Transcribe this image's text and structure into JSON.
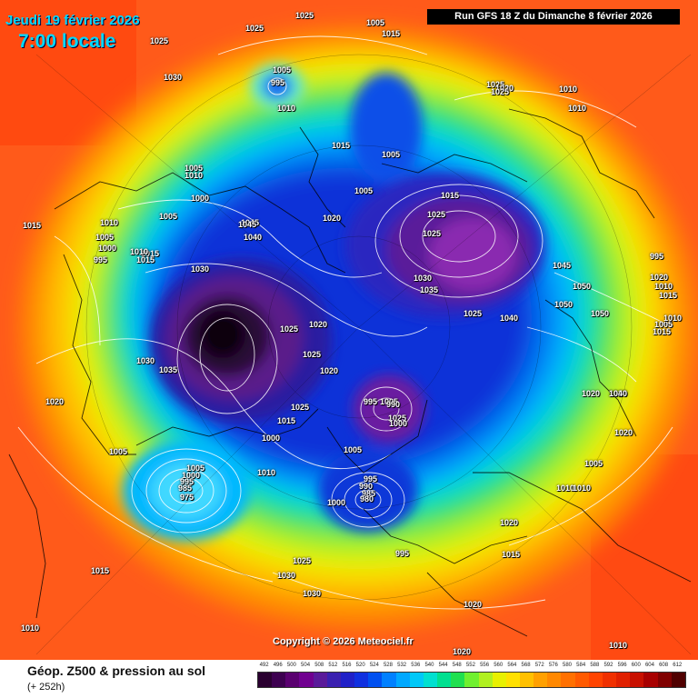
{
  "header": {
    "date_label": "Jeudi 19 février 2026",
    "time_label": "7:00 locale",
    "run_label": "Run GFS 18 Z du Dimanche 8 février 2026"
  },
  "copyright": "Copyright © 2026 Meteociel.fr",
  "legend": {
    "title": "Géop. Z500 & pression au sol",
    "subtitle": "(+ 252h)",
    "scale_values": [
      "492",
      "496",
      "500",
      "504",
      "508",
      "512",
      "516",
      "520",
      "524",
      "528",
      "532",
      "536",
      "540",
      "544",
      "548",
      "552",
      "556",
      "560",
      "564",
      "568",
      "572",
      "576",
      "580",
      "584",
      "588",
      "592",
      "596",
      "600",
      "604",
      "608",
      "612"
    ],
    "scale_colors": [
      "#2a0030",
      "#3d0050",
      "#5a0070",
      "#700090",
      "#5a1a9a",
      "#3a20b0",
      "#2020c8",
      "#1030e0",
      "#0050f0",
      "#0080ff",
      "#00a8ff",
      "#00c8f8",
      "#00e0d0",
      "#00e090",
      "#20e050",
      "#70f030",
      "#b0f020",
      "#e8f000",
      "#ffe000",
      "#ffc000",
      "#ffa000",
      "#ff8800",
      "#ff7000",
      "#ff5a00",
      "#ff4400",
      "#f03000",
      "#e02000",
      "#c81000",
      "#a80000",
      "#800000",
      "#500000"
    ]
  },
  "pressure_labels": [
    {
      "text": "1025"
    },
    {
      "text": "1025"
    },
    {
      "text": "1025"
    },
    {
      "text": "1005"
    },
    {
      "text": "1015"
    },
    {
      "text": "1025"
    },
    {
      "text": "1030"
    },
    {
      "text": "1005"
    },
    {
      "text": "995"
    },
    {
      "text": "1010"
    },
    {
      "text": "1020"
    },
    {
      "text": "1025"
    },
    {
      "text": "1010"
    },
    {
      "text": "1010"
    },
    {
      "text": "1005"
    },
    {
      "text": "1010"
    },
    {
      "text": "1015"
    },
    {
      "text": "1005"
    },
    {
      "text": "1000"
    },
    {
      "text": "1005"
    },
    {
      "text": "1005"
    },
    {
      "text": "1015"
    },
    {
      "text": "1045"
    },
    {
      "text": "1040"
    },
    {
      "text": "1020"
    },
    {
      "text": "1015"
    },
    {
      "text": "1015"
    },
    {
      "text": "1025"
    },
    {
      "text": "1025"
    },
    {
      "text": "1010"
    },
    {
      "text": "1005"
    },
    {
      "text": "1000"
    },
    {
      "text": "995"
    },
    {
      "text": "1010"
    },
    {
      "text": "1015"
    },
    {
      "text": "1030"
    },
    {
      "text": "1025"
    },
    {
      "text": "1030"
    },
    {
      "text": "1035"
    },
    {
      "text": "1045"
    },
    {
      "text": "1020"
    },
    {
      "text": "1025"
    },
    {
      "text": "1045"
    },
    {
      "text": "1040"
    },
    {
      "text": "1050"
    },
    {
      "text": "1050"
    },
    {
      "text": "1050"
    },
    {
      "text": "1005"
    },
    {
      "text": "1015"
    },
    {
      "text": "1030"
    },
    {
      "text": "1035"
    },
    {
      "text": "1025"
    },
    {
      "text": "1020"
    },
    {
      "text": "1025"
    },
    {
      "text": "1020"
    },
    {
      "text": "995"
    },
    {
      "text": "1005"
    },
    {
      "text": "1020"
    },
    {
      "text": "1020"
    },
    {
      "text": "1040"
    },
    {
      "text": "1015"
    },
    {
      "text": "1025"
    },
    {
      "text": "995"
    },
    {
      "text": "990"
    },
    {
      "text": "1000"
    },
    {
      "text": "1000"
    },
    {
      "text": "1005"
    },
    {
      "text": "1005"
    },
    {
      "text": "1020"
    },
    {
      "text": "1005"
    },
    {
      "text": "1005"
    },
    {
      "text": "1000"
    },
    {
      "text": "995"
    },
    {
      "text": "985"
    },
    {
      "text": "975"
    },
    {
      "text": "1010"
    },
    {
      "text": "995"
    },
    {
      "text": "990"
    },
    {
      "text": "985"
    },
    {
      "text": "980"
    },
    {
      "text": "1000"
    },
    {
      "text": "1010"
    },
    {
      "text": "1010"
    },
    {
      "text": "1020"
    },
    {
      "text": "1015"
    },
    {
      "text": "1025"
    },
    {
      "text": "1030"
    },
    {
      "text": "1030"
    },
    {
      "text": "1015"
    },
    {
      "text": "1020"
    },
    {
      "text": "995"
    },
    {
      "text": "1010"
    },
    {
      "text": "1020"
    },
    {
      "text": "1010"
    },
    {
      "text": "1020"
    },
    {
      "text": "1010"
    },
    {
      "text": "1015"
    },
    {
      "text": "1010"
    }
  ]
}
